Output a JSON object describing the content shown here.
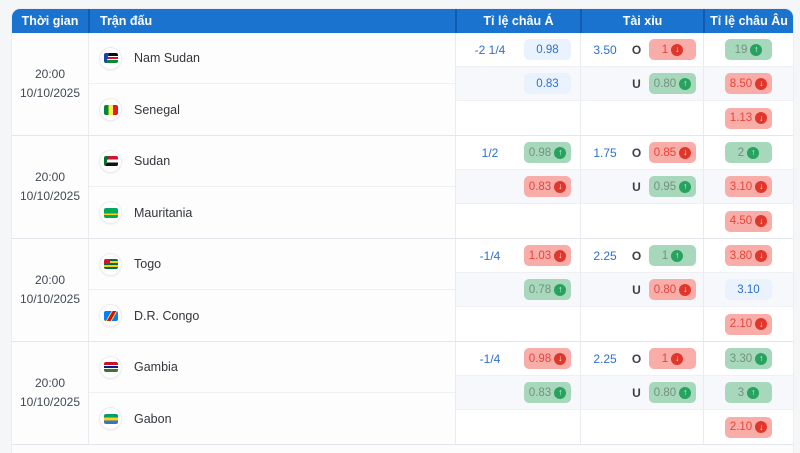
{
  "table": {
    "headers": {
      "time": "Thời gian",
      "match": "Trận đấu",
      "asian": "Tỉ lệ châu Á",
      "over_under": "Tài xỉu",
      "euro": "Tỉ lệ châu Âu"
    },
    "colors": {
      "header_bg": "#1a73cf",
      "header_divider": "#0f5cb0",
      "pill_blue_bg": "#e9f2fd",
      "pill_green_bg": "#a7d8bb",
      "pill_red_bg": "#f8ada8",
      "odds_text_blue": "#2d6fd2",
      "up_badge": "#27a35f",
      "down_badge": "#e0372c"
    }
  },
  "matches": [
    {
      "time": "20:00",
      "date": "10/10/2025",
      "home": {
        "name": "Nam Sudan",
        "flag_class": "flag f-ssd"
      },
      "away": {
        "name": "Senegal",
        "flag_class": "flag f-sen"
      },
      "rows": [
        {
          "hdp": "-2 1/4",
          "asian": {
            "text": "0.98",
            "cls": "pill blue",
            "badge": "badge off",
            "glyph": ""
          },
          "line": "3.50",
          "letter": "O",
          "ou": {
            "text": "1",
            "cls": "pill red",
            "badge": "badge down",
            "glyph": "↓"
          },
          "eu": {
            "text": "19",
            "cls": "pill green",
            "badge": "badge up",
            "glyph": "↑"
          }
        },
        {
          "hdp": "",
          "asian": {
            "text": "0.83",
            "cls": "pill blue",
            "badge": "badge off",
            "glyph": ""
          },
          "line": "",
          "letter": "U",
          "ou": {
            "text": "0.80",
            "cls": "pill green",
            "badge": "badge up",
            "glyph": "↑"
          },
          "eu": {
            "text": "8.50",
            "cls": "pill red",
            "badge": "badge down",
            "glyph": "↓"
          }
        },
        {
          "hdp": "",
          "asian": {
            "text": "",
            "cls": "pill off",
            "badge": "badge off",
            "glyph": ""
          },
          "line": "",
          "letter": "",
          "ou": {
            "text": "",
            "cls": "pill off",
            "badge": "badge off",
            "glyph": ""
          },
          "eu": {
            "text": "1.13",
            "cls": "pill red",
            "badge": "badge down",
            "glyph": "↓"
          }
        }
      ]
    },
    {
      "time": "20:00",
      "date": "10/10/2025",
      "home": {
        "name": "Sudan",
        "flag_class": "flag f-sdn"
      },
      "away": {
        "name": "Mauritania",
        "flag_class": "flag f-mrt"
      },
      "rows": [
        {
          "hdp": "1/2",
          "asian": {
            "text": "0.98",
            "cls": "pill green",
            "badge": "badge up",
            "glyph": "↑"
          },
          "line": "1.75",
          "letter": "O",
          "ou": {
            "text": "0.85",
            "cls": "pill red",
            "badge": "badge down",
            "glyph": "↓"
          },
          "eu": {
            "text": "2",
            "cls": "pill green",
            "badge": "badge up",
            "glyph": "↑"
          }
        },
        {
          "hdp": "",
          "asian": {
            "text": "0.83",
            "cls": "pill red",
            "badge": "badge down",
            "glyph": "↓"
          },
          "line": "",
          "letter": "U",
          "ou": {
            "text": "0.95",
            "cls": "pill green",
            "badge": "badge up",
            "glyph": "↑"
          },
          "eu": {
            "text": "3.10",
            "cls": "pill red",
            "badge": "badge down",
            "glyph": "↓"
          }
        },
        {
          "hdp": "",
          "asian": {
            "text": "",
            "cls": "pill off",
            "badge": "badge off",
            "glyph": ""
          },
          "line": "",
          "letter": "",
          "ou": {
            "text": "",
            "cls": "pill off",
            "badge": "badge off",
            "glyph": ""
          },
          "eu": {
            "text": "4.50",
            "cls": "pill red",
            "badge": "badge down",
            "glyph": "↓"
          }
        }
      ]
    },
    {
      "time": "20:00",
      "date": "10/10/2025",
      "home": {
        "name": "Togo",
        "flag_class": "flag f-tgo"
      },
      "away": {
        "name": "D.R. Congo",
        "flag_class": "flag f-cod"
      },
      "rows": [
        {
          "hdp": "-1/4",
          "asian": {
            "text": "1.03",
            "cls": "pill red",
            "badge": "badge down",
            "glyph": "↓"
          },
          "line": "2.25",
          "letter": "O",
          "ou": {
            "text": "1",
            "cls": "pill green",
            "badge": "badge up",
            "glyph": "↑"
          },
          "eu": {
            "text": "3.80",
            "cls": "pill red",
            "badge": "badge down",
            "glyph": "↓"
          }
        },
        {
          "hdp": "",
          "asian": {
            "text": "0.78",
            "cls": "pill green",
            "badge": "badge up",
            "glyph": "↑"
          },
          "line": "",
          "letter": "U",
          "ou": {
            "text": "0.80",
            "cls": "pill red",
            "badge": "badge down",
            "glyph": "↓"
          },
          "eu": {
            "text": "3.10",
            "cls": "pill blue",
            "badge": "badge off",
            "glyph": ""
          }
        },
        {
          "hdp": "",
          "asian": {
            "text": "",
            "cls": "pill off",
            "badge": "badge off",
            "glyph": ""
          },
          "line": "",
          "letter": "",
          "ou": {
            "text": "",
            "cls": "pill off",
            "badge": "badge off",
            "glyph": ""
          },
          "eu": {
            "text": "2.10",
            "cls": "pill red",
            "badge": "badge down",
            "glyph": "↓"
          }
        }
      ]
    },
    {
      "time": "20:00",
      "date": "10/10/2025",
      "home": {
        "name": "Gambia",
        "flag_class": "flag f-gmb"
      },
      "away": {
        "name": "Gabon",
        "flag_class": "flag f-gab"
      },
      "rows": [
        {
          "hdp": "-1/4",
          "asian": {
            "text": "0.98",
            "cls": "pill red",
            "badge": "badge down",
            "glyph": "↓"
          },
          "line": "2.25",
          "letter": "O",
          "ou": {
            "text": "1",
            "cls": "pill red",
            "badge": "badge down",
            "glyph": "↓"
          },
          "eu": {
            "text": "3.30",
            "cls": "pill green",
            "badge": "badge up",
            "glyph": "↑"
          }
        },
        {
          "hdp": "",
          "asian": {
            "text": "0.83",
            "cls": "pill green",
            "badge": "badge up",
            "glyph": "↑"
          },
          "line": "",
          "letter": "U",
          "ou": {
            "text": "0.80",
            "cls": "pill green",
            "badge": "badge up",
            "glyph": "↑"
          },
          "eu": {
            "text": "3",
            "cls": "pill green",
            "badge": "badge up",
            "glyph": "↑"
          }
        },
        {
          "hdp": "",
          "asian": {
            "text": "",
            "cls": "pill off",
            "badge": "badge off",
            "glyph": ""
          },
          "line": "",
          "letter": "",
          "ou": {
            "text": "",
            "cls": "pill off",
            "badge": "badge off",
            "glyph": ""
          },
          "eu": {
            "text": "2.10",
            "cls": "pill red",
            "badge": "badge down",
            "glyph": "↓"
          }
        }
      ]
    }
  ]
}
